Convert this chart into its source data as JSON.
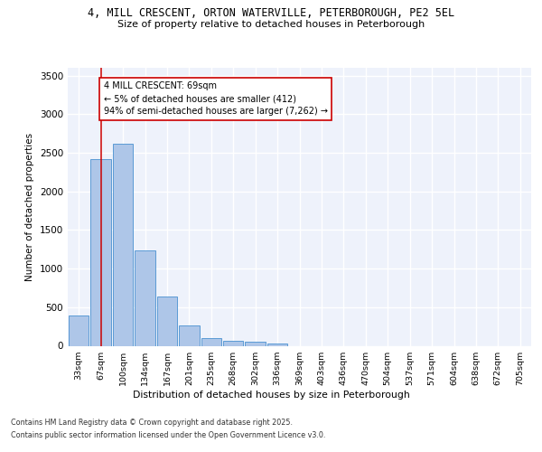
{
  "title_line1": "4, MILL CRESCENT, ORTON WATERVILLE, PETERBOROUGH, PE2 5EL",
  "title_line2": "Size of property relative to detached houses in Peterborough",
  "xlabel": "Distribution of detached houses by size in Peterborough",
  "ylabel": "Number of detached properties",
  "categories": [
    "33sqm",
    "67sqm",
    "100sqm",
    "134sqm",
    "167sqm",
    "201sqm",
    "235sqm",
    "268sqm",
    "302sqm",
    "336sqm",
    "369sqm",
    "403sqm",
    "436sqm",
    "470sqm",
    "504sqm",
    "537sqm",
    "571sqm",
    "604sqm",
    "638sqm",
    "672sqm",
    "705sqm"
  ],
  "bar_values": [
    390,
    2420,
    2620,
    1230,
    640,
    265,
    95,
    60,
    50,
    35,
    0,
    0,
    0,
    0,
    0,
    0,
    0,
    0,
    0,
    0,
    0
  ],
  "bar_color": "#aec6e8",
  "bar_edge_color": "#5b9bd5",
  "ylim": [
    0,
    3600
  ],
  "yticks": [
    0,
    500,
    1000,
    1500,
    2000,
    2500,
    3000,
    3500
  ],
  "annotation_text": "4 MILL CRESCENT: 69sqm\n← 5% of detached houses are smaller (412)\n94% of semi-detached houses are larger (7,262) →",
  "annotation_box_color": "#ffffff",
  "annotation_box_edge": "#cc0000",
  "vline_x": 1,
  "vline_color": "#cc0000",
  "background_color": "#eef2fb",
  "grid_color": "#ffffff",
  "footnote1": "Contains HM Land Registry data © Crown copyright and database right 2025.",
  "footnote2": "Contains public sector information licensed under the Open Government Licence v3.0."
}
